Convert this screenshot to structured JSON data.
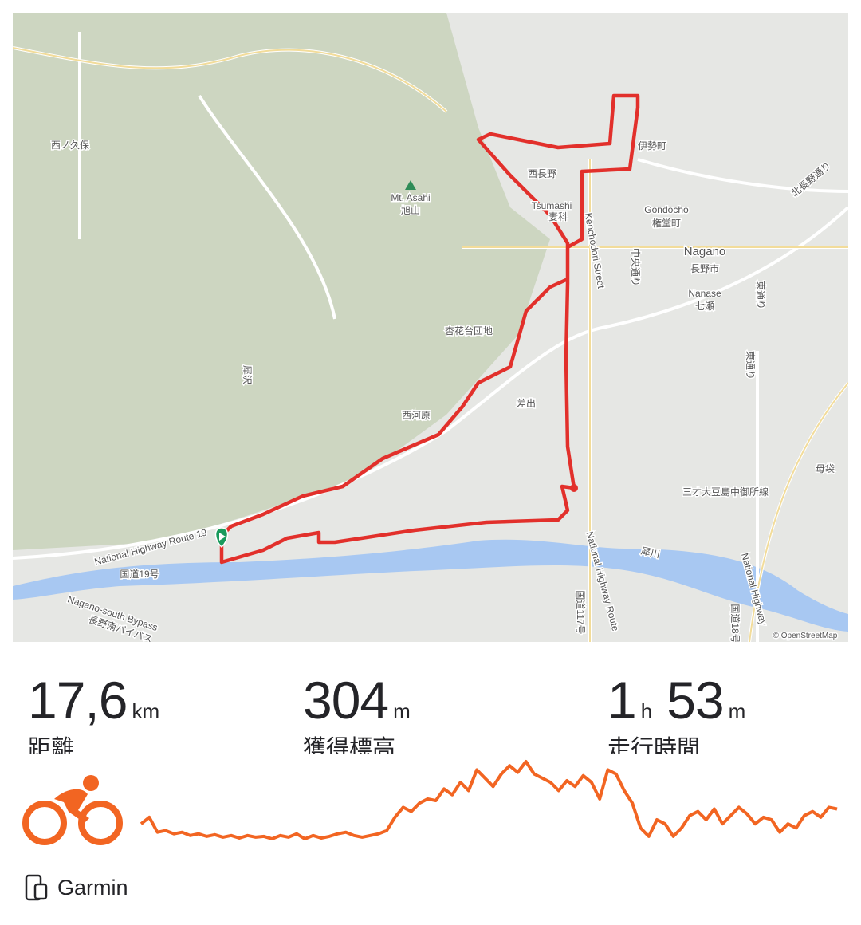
{
  "map": {
    "labels": [
      "西ノ久保",
      "Mt. Asahi",
      "旭山",
      "犀沢",
      "西河原",
      "杏花台団地",
      "Tsumashi",
      "妻科",
      "西長野",
      "伊勢町",
      "Gondocho",
      "権堂町",
      "Nagano",
      "長野市",
      "中央通り",
      "Nanase",
      "七瀬",
      "東通り",
      "東通り",
      "差出",
      "母袋",
      "三才大豆島中御所線",
      "北長野通り",
      "犀川",
      "National Highway Route 19",
      "国道19号",
      "Nagano-south Bypass",
      "長野南バイパス",
      "Kenchodori Street",
      "National Highway Route",
      "国道117号",
      "国道18号",
      "National Highway"
    ],
    "attribution": "© OpenStreetMap"
  },
  "stats": [
    {
      "value": "17,6",
      "unit": "km",
      "label": "距離"
    },
    {
      "value": 304,
      "unit": "m",
      "label": "獲得標高"
    },
    {
      "hours": 1,
      "hours_unit": "h",
      "minutes": 53,
      "minutes_unit": "m",
      "label": "走行時間"
    }
  ],
  "elevation_profile": [
    20,
    28,
    10,
    12,
    8,
    10,
    6,
    8,
    5,
    7,
    4,
    6,
    3,
    6,
    4,
    5,
    2,
    6,
    4,
    8,
    2,
    6,
    3,
    5,
    8,
    10,
    6,
    4,
    6,
    8,
    12,
    28,
    40,
    35,
    45,
    50,
    48,
    62,
    55,
    70,
    60,
    85,
    75,
    65,
    80,
    90,
    82,
    95,
    80,
    75,
    70,
    60,
    72,
    65,
    78,
    70,
    50,
    85,
    80,
    60,
    45,
    15,
    5,
    25,
    20,
    5,
    15,
    30,
    35,
    25,
    38,
    20,
    30,
    40,
    32,
    20,
    28,
    25,
    10,
    20,
    15,
    30,
    35,
    28,
    40,
    38
  ],
  "device": "Garmin"
}
